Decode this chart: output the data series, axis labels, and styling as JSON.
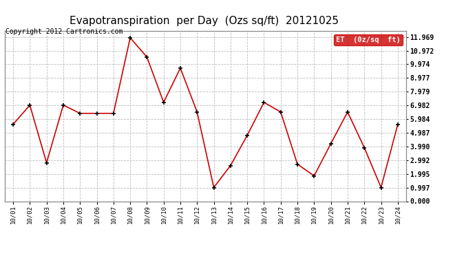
{
  "title": "Evapotranspiration  per Day  (Ozs sq/ft)  20121025",
  "copyright": "Copyright 2012 Cartronics.com",
  "legend_label": "ET  (0z/sq  ft)",
  "x_labels": [
    "10/01",
    "10/02",
    "10/03",
    "10/04",
    "10/05",
    "10/06",
    "10/07",
    "10/08",
    "10/09",
    "10/10",
    "10/11",
    "10/12",
    "10/13",
    "10/14",
    "10/15",
    "10/16",
    "10/17",
    "10/18",
    "10/19",
    "10/20",
    "10/21",
    "10/22",
    "10/23",
    "10/24"
  ],
  "y_values": [
    5.6,
    7.0,
    2.8,
    7.0,
    6.4,
    6.4,
    6.4,
    11.9,
    10.5,
    7.2,
    9.7,
    6.5,
    1.0,
    2.6,
    4.8,
    7.2,
    6.5,
    2.7,
    1.85,
    4.2,
    6.5,
    3.9,
    1.0,
    5.6
  ],
  "y_ticks": [
    0.0,
    0.997,
    1.995,
    2.992,
    3.99,
    4.987,
    5.984,
    6.982,
    7.979,
    8.977,
    9.974,
    10.972,
    11.969
  ],
  "line_color": "#cc0000",
  "marker": "+",
  "marker_color": "#000000",
  "bg_color": "#ffffff",
  "plot_bg_color": "#ffffff",
  "grid_color": "#bbbbbb",
  "title_fontsize": 11,
  "copyright_fontsize": 7,
  "legend_bg": "#cc0000",
  "legend_text_color": "#ffffff",
  "ylim": [
    0.0,
    12.4
  ],
  "xlim": [
    -0.5,
    23.5
  ],
  "title_color": "#000000"
}
